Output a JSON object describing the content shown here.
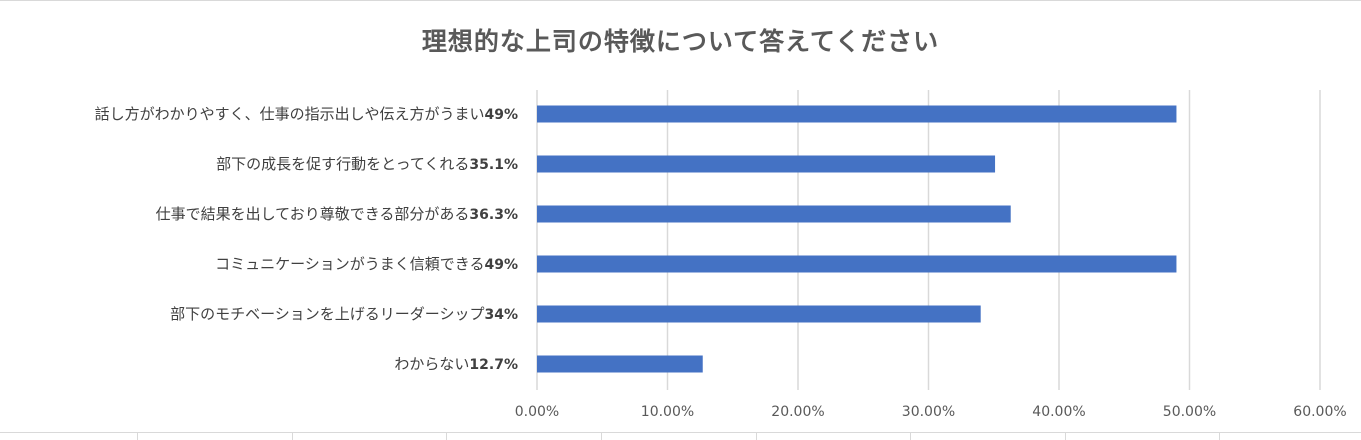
{
  "chart_data": {
    "type": "bar",
    "orientation": "horizontal",
    "title": "理想的な上司の特徴について答えてください",
    "categories": [
      "話し方がわかりやすく、仕事の指示出しや伝え方がうまい",
      "部下の成長を促す行動をとってくれる",
      "仕事で結果を出しており尊敬できる部分がある",
      "コミュニケーションがうまく信頼できる",
      "部下のモチベーションを上げるリーダーシップ",
      "わからない"
    ],
    "values": [
      49,
      35.1,
      36.3,
      49,
      34,
      12.7
    ],
    "value_labels": [
      "49%",
      "35.1%",
      "36.3%",
      "49%",
      "34%",
      "12.7%"
    ],
    "xlim": [
      0,
      60
    ],
    "x_ticks": [
      "0.00%",
      "10.00%",
      "20.00%",
      "30.00%",
      "40.00%",
      "50.00%",
      "60.00%"
    ],
    "bar_color": "#4472c4",
    "grid": true,
    "xlabel": "",
    "ylabel": ""
  }
}
